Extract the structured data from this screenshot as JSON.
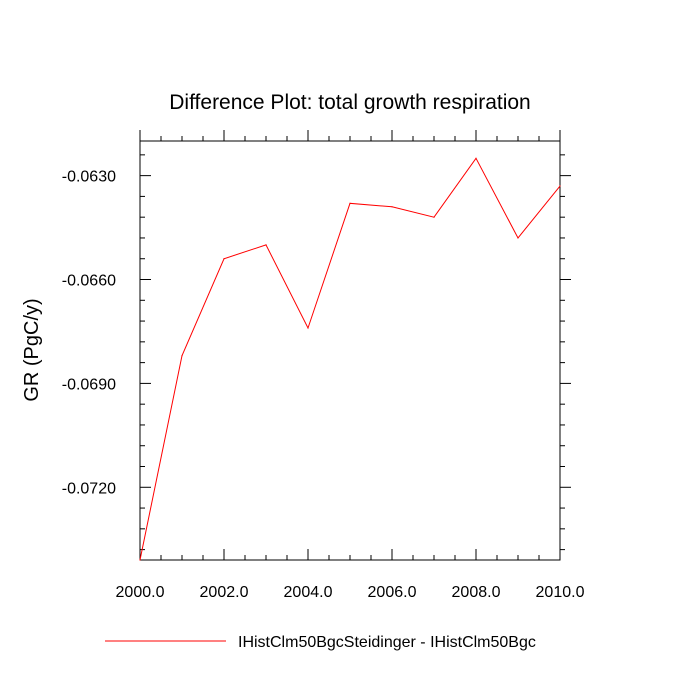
{
  "chart_data": {
    "type": "line",
    "title": "Difference Plot: total growth respiration",
    "xlabel": "",
    "ylabel": "GR  (PgC/y)",
    "xlim": [
      2000,
      2010
    ],
    "ylim": [
      -0.0741,
      -0.062
    ],
    "grid": false,
    "legend_position": "bottom",
    "x_ticks": [
      2000,
      2002,
      2004,
      2006,
      2008,
      2010
    ],
    "x_tick_labels": [
      "2000.0",
      "2002.0",
      "2004.0",
      "2006.0",
      "2008.0",
      "2010.0"
    ],
    "y_ticks": [
      -0.072,
      -0.069,
      -0.066,
      -0.063
    ],
    "y_tick_labels": [
      "-0.0720",
      "-0.0690",
      "-0.0660",
      "-0.0630"
    ],
    "x": [
      2000,
      2001,
      2002,
      2003,
      2004,
      2005,
      2006,
      2007,
      2008,
      2009,
      2010
    ],
    "series": [
      {
        "name": "IHistClm50BgcSteidinger - IHistClm50Bgc",
        "color": "#ff0000",
        "values": [
          -0.0741,
          -0.0682,
          -0.0654,
          -0.065,
          -0.0674,
          -0.0638,
          -0.0639,
          -0.0642,
          -0.0625,
          -0.0648,
          -0.0633
        ]
      }
    ]
  }
}
